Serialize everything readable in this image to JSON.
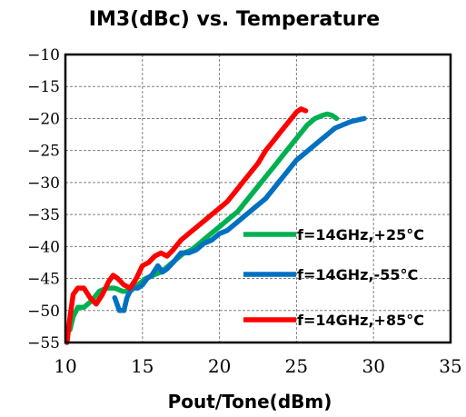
{
  "chart_data": {
    "type": "line",
    "title": "IM3(dBc) vs. Temperature",
    "xlabel": "Pout/Tone(dBm)",
    "ylabel": "",
    "xlim": [
      10,
      35
    ],
    "ylim": [
      -55,
      -10
    ],
    "xticks": [
      10,
      15,
      20,
      25,
      30,
      35
    ],
    "yticks": [
      -10,
      -15,
      -20,
      -25,
      -30,
      -35,
      -40,
      -45,
      -50,
      -55
    ],
    "grid": true,
    "legend_position": "lower-right",
    "series": [
      {
        "name": "f=14GHz,+25°C",
        "color": "#00b050",
        "x": [
          10.3,
          10.5,
          10.8,
          11.2,
          11.7,
          12.2,
          12.7,
          13.2,
          13.7,
          14.2,
          14.7,
          15.2,
          15.7,
          16.2,
          16.7,
          17.2,
          17.7,
          18.2,
          18.7,
          19.2,
          19.7,
          20.2,
          20.7,
          21.2,
          21.7,
          22.2,
          22.7,
          23.2,
          23.7,
          24.2,
          24.7,
          25.2,
          25.7,
          26.2,
          26.7,
          27.0,
          27.3,
          27.6
        ],
        "y": [
          -53,
          -51,
          -49.5,
          -49.5,
          -48.5,
          -47,
          -46.5,
          -46.5,
          -47,
          -47,
          -46,
          -45,
          -44.5,
          -44,
          -43,
          -42,
          -41,
          -40.5,
          -39.5,
          -38.5,
          -37.5,
          -36.5,
          -35.5,
          -34.5,
          -33,
          -31.5,
          -30,
          -28.5,
          -27,
          -25.5,
          -24,
          -22.5,
          -21,
          -20,
          -19.5,
          -19.3,
          -19.5,
          -20
        ]
      },
      {
        "name": "f=14GHz,-55°C",
        "color": "#0070c0",
        "x": [
          13.2,
          13.5,
          13.8,
          14.0,
          14.3,
          14.7,
          15.0,
          15.3,
          15.6,
          16.0,
          16.3,
          16.6,
          17.0,
          17.5,
          18.0,
          18.5,
          19.0,
          19.5,
          20.0,
          20.5,
          21.0,
          21.5,
          22.0,
          22.5,
          23.0,
          23.5,
          24.0,
          24.5,
          25.0,
          25.5,
          26.0,
          26.5,
          27.0,
          27.5,
          28.0,
          28.5,
          29.0,
          29.4
        ],
        "y": [
          -48,
          -50,
          -50,
          -48,
          -46.5,
          -46.5,
          -46,
          -45,
          -44.5,
          -43,
          -44,
          -43.5,
          -42.5,
          -41,
          -41,
          -40.5,
          -39.5,
          -39,
          -38,
          -37.5,
          -36.5,
          -35.5,
          -34.5,
          -33.5,
          -32.5,
          -31,
          -29.5,
          -28,
          -26.5,
          -25.5,
          -24.5,
          -23.5,
          -22.5,
          -21.5,
          -21,
          -20.5,
          -20.2,
          -20
        ]
      },
      {
        "name": "f=14GHz,+85°C",
        "color": "#ff0000",
        "x": [
          10.1,
          10.3,
          10.5,
          10.8,
          11.2,
          11.6,
          12.0,
          12.4,
          12.8,
          13.1,
          13.4,
          13.8,
          14.2,
          14.6,
          15.0,
          15.4,
          15.8,
          16.2,
          16.6,
          17.0,
          17.5,
          18.0,
          18.5,
          19.0,
          19.5,
          20.0,
          20.5,
          21.0,
          21.5,
          22.0,
          22.5,
          23.0,
          23.5,
          24.0,
          24.5,
          25.0,
          25.3,
          25.6
        ],
        "y": [
          -55,
          -51,
          -47.5,
          -46.5,
          -46.5,
          -48,
          -49,
          -47.5,
          -45.5,
          -44.5,
          -45,
          -46,
          -46.5,
          -45,
          -43,
          -42.5,
          -41.5,
          -41,
          -41.5,
          -40.5,
          -39,
          -38,
          -37,
          -36,
          -35,
          -34,
          -33,
          -31.5,
          -30,
          -28.5,
          -27,
          -25,
          -23.5,
          -22,
          -20.5,
          -19,
          -18.5,
          -18.8
        ]
      }
    ]
  }
}
